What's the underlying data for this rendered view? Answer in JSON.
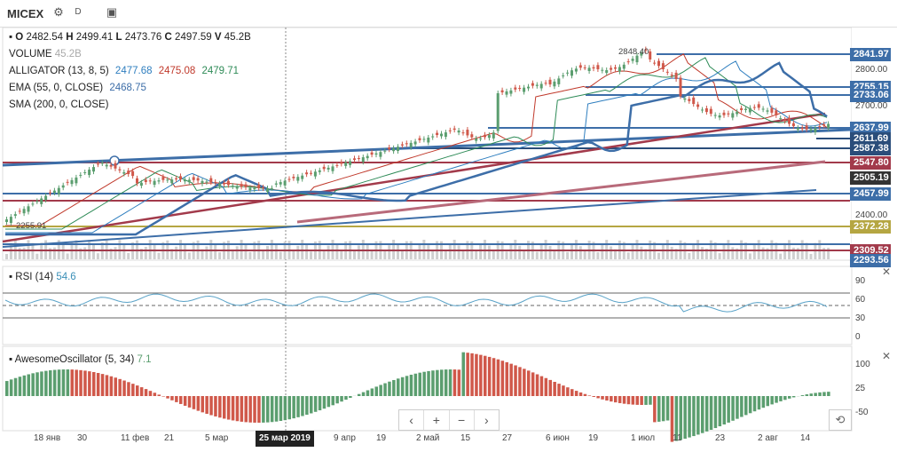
{
  "toolbar": {
    "symbol": "MICEX",
    "icons": [
      "gear-icon",
      "d-badge-icon",
      "save-icon"
    ],
    "d_label": "D"
  },
  "legend": {
    "ohlc": {
      "o_label": "O",
      "o": "2482.54",
      "h_label": "H",
      "h": "2499.41",
      "l_label": "L",
      "l": "2473.76",
      "c_label": "C",
      "c": "2497.59",
      "v_label": "V",
      "v": "45.2B"
    },
    "volume": {
      "label": "VOLUME",
      "value": "45.2B"
    },
    "alligator": {
      "label": "ALLIGATOR (13, 8, 5)",
      "v1": "2477.68",
      "v2": "2475.08",
      "v3": "2479.71"
    },
    "ema": {
      "label": "EMA (55, 0, CLOSE)",
      "value": "2468.75"
    },
    "sma": {
      "label": "SMA (200, 0, CLOSE)"
    }
  },
  "colors": {
    "up": "#5b9e6f",
    "down": "#d0584a",
    "trend_blue": "#3d6ea8",
    "trend_red": "#a23a4b",
    "jaw": "#2e7ebf",
    "teeth": "#c0392b",
    "lips": "#2e8b57",
    "olive": "#b5a642"
  },
  "price_axis": {
    "ticks": [
      "2800.00",
      "2700.00",
      "2400.00"
    ],
    "labels": [
      {
        "text": "2841.97",
        "color": "#3d6ea8"
      },
      {
        "text": "2755.15",
        "color": "#3d6ea8"
      },
      {
        "text": "2733.06",
        "color": "#3d6ea8"
      },
      {
        "text": "2637.99",
        "color": "#3d6ea8"
      },
      {
        "text": "2611.69",
        "color": "#2a4d7a"
      },
      {
        "text": "2587.38",
        "color": "#2a4d7a"
      },
      {
        "text": "2547.80",
        "color": "#a23a4b"
      },
      {
        "text": "2505.19",
        "color": "#333333"
      },
      {
        "text": "2457.99",
        "color": "#3d6ea8"
      },
      {
        "text": "2372.28",
        "color": "#b5a642"
      },
      {
        "text": "2309.52",
        "color": "#a23a4b"
      },
      {
        "text": "2293.56",
        "color": "#3d6ea8"
      }
    ],
    "high_marker": "2848.40",
    "low_marker": "2255.91"
  },
  "rsi": {
    "label": "RSI (14)",
    "value": "54.6",
    "ticks": [
      "90",
      "60",
      "30",
      "0"
    ]
  },
  "ao": {
    "label": "AwesomeOscillator (5, 34)",
    "value": "7.1",
    "ticks": [
      "100",
      "25",
      "-50"
    ]
  },
  "x_axis": {
    "ticks": [
      "18 янв",
      "30",
      "11 фев",
      "21",
      "5 мар",
      "25 мар 2019",
      "9 апр",
      "19",
      "2 май",
      "15",
      "27",
      "6 июн",
      "19",
      "1 июл",
      "11",
      "23",
      "2 авг",
      "14"
    ],
    "highlight": "25 мар 2019"
  },
  "nav": {
    "prev": "‹",
    "zoom_in": "+",
    "zoom_out": "−",
    "next": "›",
    "reset": "⟲"
  }
}
